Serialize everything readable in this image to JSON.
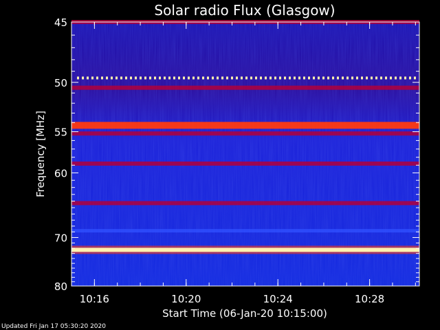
{
  "chart_data": {
    "type": "heatmap",
    "title": "Solar radio Flux (Glasgow)",
    "xlabel": "Start Time (06-Jan-20 10:15:00)",
    "ylabel": "Frequency [MHz]",
    "ylim": [
      45,
      80
    ],
    "y_ticks": [
      "45",
      "50",
      "55",
      "60",
      "70",
      "80"
    ],
    "x_tick_labels": [
      "10:16",
      "10:20",
      "10:24",
      "10:28"
    ],
    "colors": {
      "background": "#000000",
      "low": "#0a14c8",
      "mid": "#b0003c",
      "high": "#ff3a10",
      "peak": "#fff2b0"
    },
    "bands": [
      {
        "freq": 45.0,
        "level": "mid"
      },
      {
        "freq": 49.6,
        "level": "dotted-peak"
      },
      {
        "freq": 50.5,
        "level": "mid"
      },
      {
        "freq": 54.3,
        "level": "high"
      },
      {
        "freq": 55.2,
        "level": "mid"
      },
      {
        "freq": 58.8,
        "level": "mid"
      },
      {
        "freq": 64.3,
        "level": "mid"
      },
      {
        "freq": 68.8,
        "level": "low"
      },
      {
        "freq": 72.3,
        "level": "peak"
      }
    ]
  },
  "footer": {
    "updated": "Updated Fri Jan 17 05:30:20 2020"
  }
}
